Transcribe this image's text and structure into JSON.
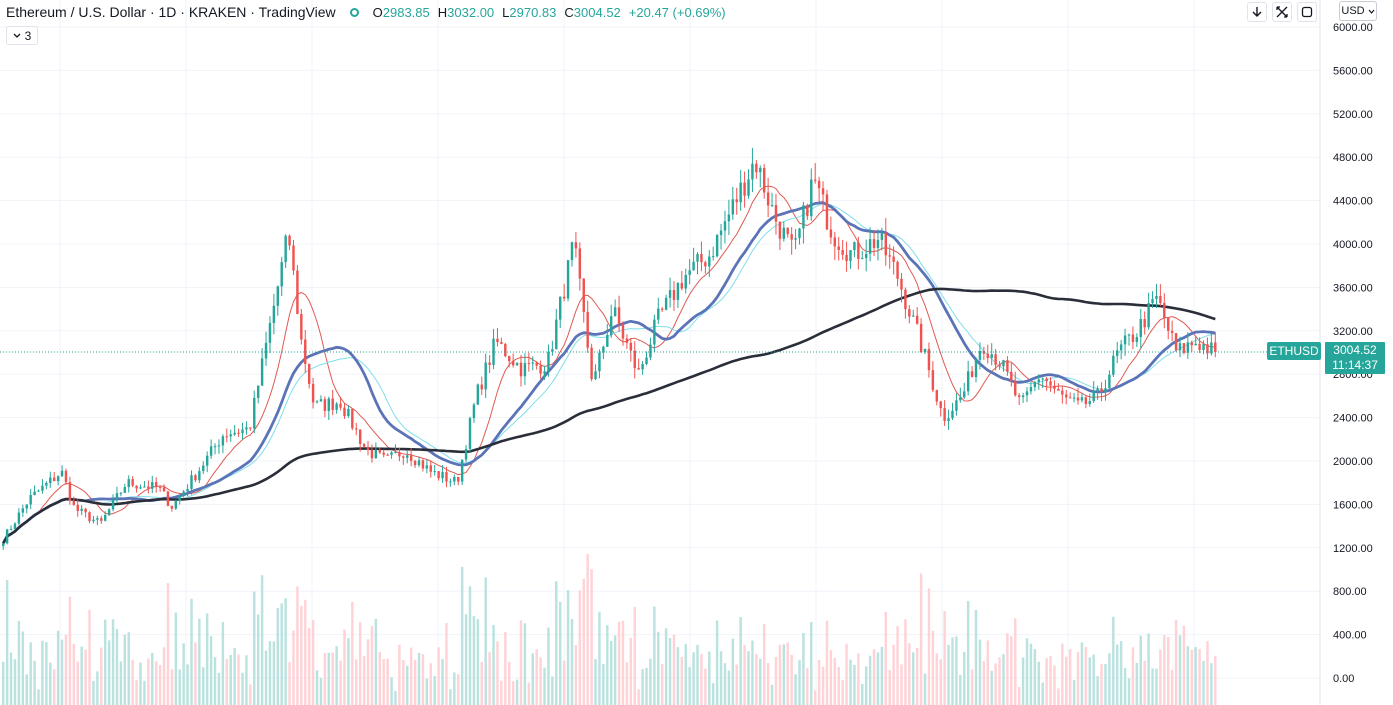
{
  "legend": {
    "symbol": "Ethereum / U.S. Dollar · 1D · KRAKEN · TradingView",
    "open_label": "O",
    "open": "2983.85",
    "high_label": "H",
    "high": "3032.00",
    "low_label": "L",
    "low": "2970.83",
    "close_label": "C",
    "close": "3004.52",
    "change": "+20.47 (+0.69%)"
  },
  "indicators_badge": "3",
  "toolbar": {
    "currency": "USD"
  },
  "last_price": {
    "symbol": "ETHUSD",
    "price": "3004.52",
    "countdown": "11:14:37"
  },
  "colors": {
    "up": "#26a69a",
    "down": "#ef5350",
    "ma_fast": "#e05a52",
    "ma_mid": "#80deea",
    "ma_blue": "#5b74b8",
    "ma_long": "#2a2e39"
  },
  "chart_data": {
    "type": "candlestick",
    "y_axis": {
      "ticks": [
        "6000.00",
        "5600.00",
        "5200.00",
        "4800.00",
        "4400.00",
        "4000.00",
        "3600.00",
        "3200.00",
        "2800.00",
        "2400.00",
        "2000.00",
        "1600.00",
        "1200.00",
        "800.00",
        "400.00",
        "0.00"
      ],
      "range": [
        0,
        6000
      ]
    },
    "candles": 310,
    "last_close": 3004.52,
    "close_path": [
      [
        0,
        1280
      ],
      [
        8,
        1650
      ],
      [
        18,
        1900
      ],
      [
        22,
        1560
      ],
      [
        30,
        1420
      ],
      [
        38,
        1800
      ],
      [
        48,
        1750
      ],
      [
        52,
        1580
      ],
      [
        60,
        1900
      ],
      [
        68,
        2250
      ],
      [
        76,
        2300
      ],
      [
        82,
        3200
      ],
      [
        88,
        4100
      ],
      [
        92,
        3100
      ],
      [
        96,
        2500
      ],
      [
        104,
        2550
      ],
      [
        112,
        2100
      ],
      [
        118,
        2000
      ],
      [
        124,
        2100
      ],
      [
        132,
        1900
      ],
      [
        140,
        1800
      ],
      [
        146,
        2600
      ],
      [
        152,
        3100
      ],
      [
        160,
        2850
      ],
      [
        168,
        2900
      ],
      [
        176,
        4000
      ],
      [
        182,
        2700
      ],
      [
        188,
        3400
      ],
      [
        196,
        2800
      ],
      [
        202,
        3300
      ],
      [
        210,
        3700
      ],
      [
        218,
        3900
      ],
      [
        226,
        4400
      ],
      [
        232,
        4780
      ],
      [
        238,
        4250
      ],
      [
        244,
        3900
      ],
      [
        250,
        4600
      ],
      [
        256,
        4100
      ],
      [
        262,
        3900
      ],
      [
        270,
        4050
      ],
      [
        276,
        3700
      ],
      [
        284,
        3000
      ],
      [
        290,
        2400
      ],
      [
        296,
        2600
      ],
      [
        302,
        3100
      ],
      [
        308,
        2900
      ],
      [
        314,
        2500
      ],
      [
        320,
        2800
      ],
      [
        326,
        2600
      ],
      [
        332,
        2500
      ],
      [
        338,
        2600
      ],
      [
        344,
        3000
      ],
      [
        350,
        3200
      ],
      [
        356,
        3500
      ],
      [
        362,
        3000
      ],
      [
        368,
        3100
      ],
      [
        374,
        3000
      ]
    ],
    "moving_averages": [
      {
        "color": "#e05a52",
        "period": 10
      },
      {
        "color": "#80deea",
        "period": 30
      },
      {
        "color": "#5b74b8",
        "period": 30
      },
      {
        "color": "#2a2e39",
        "period": 200
      }
    ],
    "volume_scale": "relative"
  }
}
